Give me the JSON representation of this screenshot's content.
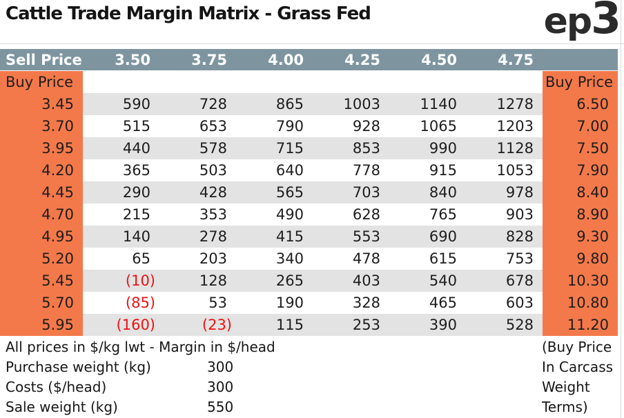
{
  "header": {
    "title": "Cattle Trade Margin Matrix - Grass Fed",
    "logo_ep": "ep",
    "logo_three": "3"
  },
  "table": {
    "sell_price_label": "Sell Price",
    "sell_prices": [
      "3.50",
      "3.75",
      "4.00",
      "4.25",
      "4.50",
      "4.75"
    ],
    "buy_price_label_left": "Buy Price",
    "buy_price_label_right": "Buy Price",
    "rows": [
      {
        "buy_lwt": "3.45",
        "margins": [
          "590",
          "728",
          "865",
          "1003",
          "1140",
          "1278"
        ],
        "buy_cwt": "6.50"
      },
      {
        "buy_lwt": "3.70",
        "margins": [
          "515",
          "653",
          "790",
          "928",
          "1065",
          "1203"
        ],
        "buy_cwt": "7.00"
      },
      {
        "buy_lwt": "3.95",
        "margins": [
          "440",
          "578",
          "715",
          "853",
          "990",
          "1128"
        ],
        "buy_cwt": "7.50"
      },
      {
        "buy_lwt": "4.20",
        "margins": [
          "365",
          "503",
          "640",
          "778",
          "915",
          "1053"
        ],
        "buy_cwt": "7.90"
      },
      {
        "buy_lwt": "4.45",
        "margins": [
          "290",
          "428",
          "565",
          "703",
          "840",
          "978"
        ],
        "buy_cwt": "8.40"
      },
      {
        "buy_lwt": "4.70",
        "margins": [
          "215",
          "353",
          "490",
          "628",
          "765",
          "903"
        ],
        "buy_cwt": "8.90"
      },
      {
        "buy_lwt": "4.95",
        "margins": [
          "140",
          "278",
          "415",
          "553",
          "690",
          "828"
        ],
        "buy_cwt": "9.30"
      },
      {
        "buy_lwt": "5.20",
        "margins": [
          "65",
          "203",
          "340",
          "478",
          "615",
          "753"
        ],
        "buy_cwt": "9.80"
      },
      {
        "buy_lwt": "5.45",
        "margins": [
          "(10)",
          "128",
          "265",
          "403",
          "540",
          "678"
        ],
        "buy_cwt": "10.30"
      },
      {
        "buy_lwt": "5.70",
        "margins": [
          "(85)",
          "53",
          "190",
          "328",
          "465",
          "603"
        ],
        "buy_cwt": "10.80"
      },
      {
        "buy_lwt": "5.95",
        "margins": [
          "(160)",
          "(23)",
          "115",
          "253",
          "390",
          "528"
        ],
        "buy_cwt": "11.20"
      }
    ]
  },
  "footer": {
    "note": "All prices in $/kg lwt - Margin in $/head",
    "params": [
      {
        "label": "Purchase weight (kg)",
        "value": "300"
      },
      {
        "label": "Costs ($/head)",
        "value": "300"
      },
      {
        "label": "Sale weight (kg)",
        "value": "550"
      }
    ],
    "right_note_lines": [
      "(Buy Price",
      "In Carcass",
      "Weight",
      "Terms)"
    ]
  },
  "colors": {
    "orange": "#f4794a",
    "header_slate": "#7e95a0",
    "row_stripe": "#e3e3e3",
    "negative_red": "#ee1111",
    "text": "#1d1d1d"
  }
}
